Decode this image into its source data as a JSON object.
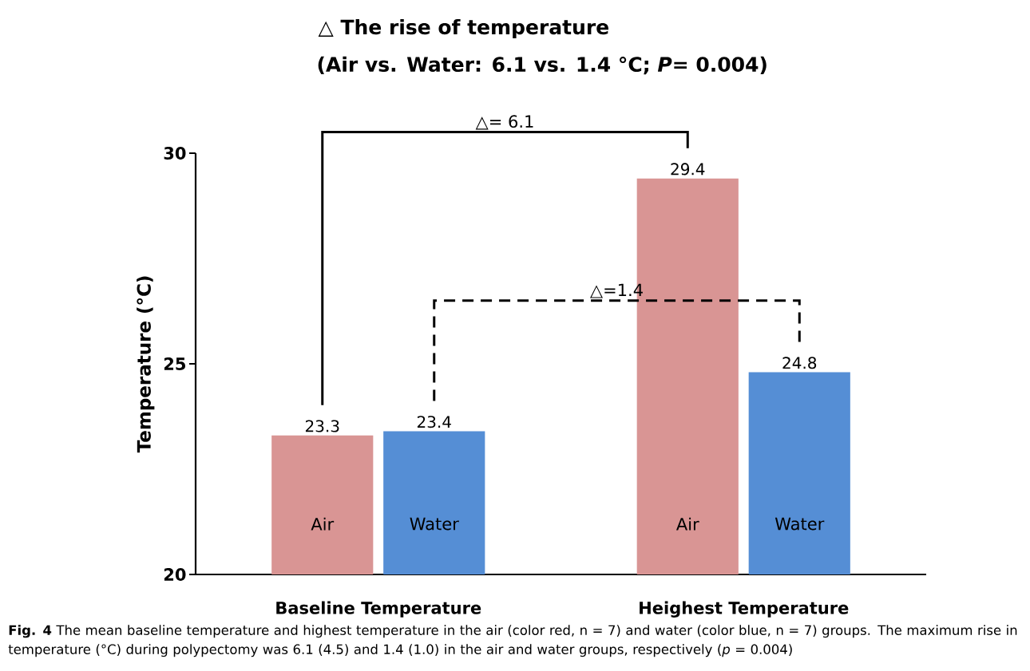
{
  "chart_data": {
    "type": "bar",
    "title": "△ The rise of temperature",
    "subtitle": "(Air vs. Water: 6.1 vs. 1.4 °C; *P*= 0.004)",
    "ylabel": "Temperature (°C)",
    "categories": [
      "Baseline Temperature",
      "Heighest Temperature"
    ],
    "series": [
      {
        "name": "Air",
        "color": "#d99594",
        "values": [
          23.3,
          29.4
        ]
      },
      {
        "name": "Water",
        "color": "#558ed5",
        "values": [
          23.4,
          24.8
        ]
      }
    ],
    "ylim": [
      20,
      30
    ],
    "yticks": [
      20,
      25,
      30
    ],
    "grid": false,
    "legend": false,
    "data_labels": true,
    "annotations": [
      "△= 6.1",
      "△=1.4",
      "**Fig. 4** The mean baseline temperature and highest temperature in the air (color red, n = 7) and water (color blue, n = 7) groups. The maximum rise in temperature (°C) during polypectomy was 6.1 (4.5) and 1.4 (1.0) in the air and water groups, respectively (*p* = 0.004)"
    ]
  }
}
